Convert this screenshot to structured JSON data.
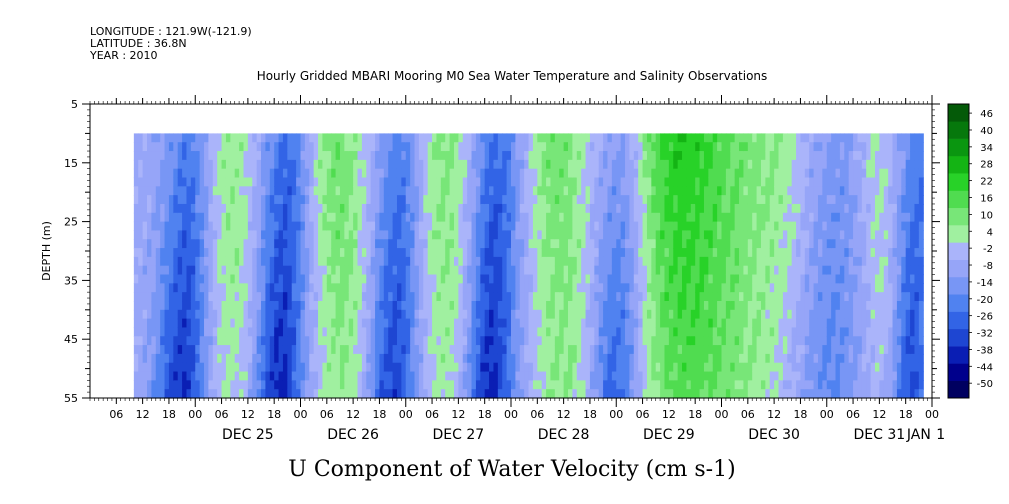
{
  "meta": {
    "longitude": "LONGITUDE : 121.9W(-121.9)",
    "latitude": "LATITUDE : 36.8N",
    "year": "YEAR : 2010"
  },
  "chart_data": {
    "type": "heatmap",
    "title": "Hourly Gridded MBARI Mooring M0 Sea Water Temperature and Salinity Observations",
    "xlabel": "U Component of Water Velocity (cm s-1)",
    "ylabel": "DEPTH (m)",
    "ylim": [
      55,
      5
    ],
    "y_ticks": [
      5,
      15,
      25,
      35,
      45,
      55
    ],
    "y_tick_labels": [
      "5",
      "15",
      "25",
      "35",
      "45",
      "55"
    ],
    "x_range_hours_from_dec24_00": [
      0,
      192
    ],
    "x_hour_ticks": [
      "06",
      "12",
      "18",
      "00",
      "06",
      "12",
      "18",
      "00",
      "06",
      "12",
      "18",
      "00",
      "06",
      "12",
      "18",
      "00",
      "06",
      "12",
      "18",
      "00",
      "06",
      "12",
      "18",
      "00",
      "06",
      "12",
      "18",
      "00",
      "06",
      "12",
      "18",
      "00"
    ],
    "x_day_labels": [
      "DEC 25",
      "DEC 26",
      "DEC 27",
      "DEC 28",
      "DEC 29",
      "DEC 30",
      "DEC 31",
      "JAN",
      "1"
    ],
    "data_depth_range": [
      10,
      55
    ],
    "data_time_range_hours": [
      10,
      190
    ],
    "colorbar": {
      "levels": [
        -50,
        -44,
        -38,
        -32,
        -26,
        -20,
        -14,
        -8,
        -2,
        4,
        10,
        16,
        22,
        28,
        34,
        40,
        46
      ],
      "tick_labels": [
        "46",
        "40",
        "34",
        "28",
        "22",
        "16",
        "10",
        "4",
        "-2",
        "-8",
        "-14",
        "-20",
        "-26",
        "-32",
        "-38",
        "-44",
        "-50"
      ],
      "colors": [
        "#000060",
        "#00008c",
        "#0a1eb4",
        "#1e46d2",
        "#3264e6",
        "#5082f0",
        "#7896f5",
        "#96a5f8",
        "#aab4fa",
        "#a0f0a0",
        "#78e678",
        "#50dc50",
        "#28d228",
        "#14b414",
        "#0a9610",
        "#06780c",
        "#045a08"
      ]
    }
  }
}
